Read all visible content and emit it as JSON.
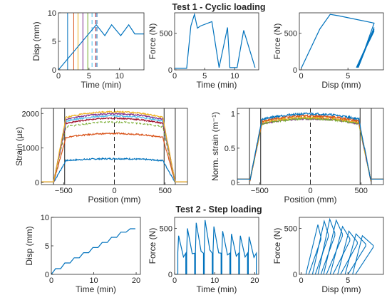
{
  "section_titles": {
    "test1": "Test 1 - Cyclic loading",
    "test2": "Test 2 - Step loading"
  },
  "chart_data": [
    {
      "id": "t1_disp",
      "type": "line",
      "xlabel": "Time (min)",
      "ylabel": "Disp (mm)",
      "xlim": [
        0,
        14
      ],
      "ylim": [
        0,
        10
      ],
      "xticks": [
        0,
        5,
        10
      ],
      "yticks": [
        0,
        5,
        10
      ],
      "series": [
        {
          "color": "#0072BD",
          "x": [
            0,
            6.2,
            7.6,
            8.7,
            10.2,
            11.5,
            12.5,
            14
          ],
          "y": [
            0,
            7.9,
            6.0,
            7.9,
            6.0,
            7.9,
            6.3,
            6.3
          ]
        }
      ],
      "vlines": [
        {
          "x": 1.5,
          "color": "#0072BD",
          "dash": false
        },
        {
          "x": 2.5,
          "color": "#D95319",
          "dash": false
        },
        {
          "x": 3.2,
          "color": "#EDB120",
          "dash": false
        },
        {
          "x": 4.0,
          "color": "#7E2F8E",
          "dash": false
        },
        {
          "x": 4.8,
          "color": "#77AC30",
          "dash": false
        },
        {
          "x": 5.5,
          "color": "#4DBEEE",
          "dash": true
        },
        {
          "x": 6.1,
          "color": "#A2142F",
          "dash": true
        },
        {
          "x": 6.3,
          "color": "#0072BD",
          "dash": true
        }
      ]
    },
    {
      "id": "t1_force_time",
      "type": "line",
      "xlabel": "Time (min)",
      "ylabel": "Force (N)",
      "xlim": [
        0,
        14
      ],
      "ylim": [
        0,
        780
      ],
      "xticks": [
        0,
        5,
        10
      ],
      "yticks": [
        0,
        500
      ],
      "series": [
        {
          "color": "#0072BD",
          "x": [
            0,
            2.0,
            2.7,
            3.3,
            3.8,
            4.3,
            6.2,
            7.4,
            8.8,
            9.2,
            10.4,
            11.5,
            13.4
          ],
          "y": [
            20,
            20,
            600,
            760,
            570,
            600,
            660,
            30,
            580,
            30,
            30,
            540,
            30
          ]
        }
      ]
    },
    {
      "id": "t1_force_disp",
      "type": "line",
      "xlabel": "Disp (mm)",
      "ylabel": "Force (N)",
      "xlim": [
        -0.2,
        8.8
      ],
      "ylim": [
        0,
        780
      ],
      "xticks": [
        0,
        5
      ],
      "yticks": [
        0,
        500
      ],
      "series": [
        {
          "color": "#0072BD",
          "x": [
            0,
            2.0,
            3.1,
            4.0,
            7.8,
            6.1,
            7.8,
            6.0,
            7.8,
            5.9,
            7.8,
            5.9,
            7.8
          ],
          "y": [
            20,
            560,
            760,
            740,
            640,
            30,
            580,
            30,
            560,
            30,
            550,
            30,
            530
          ]
        }
      ]
    },
    {
      "id": "t1_strain",
      "type": "line",
      "xlabel": "Position (mm)",
      "ylabel": "Strain (με)",
      "xlim": [
        -720,
        720
      ],
      "ylim": [
        -60,
        2150
      ],
      "xticks": [
        -500,
        0,
        500
      ],
      "yticks": [
        0,
        1000,
        2000
      ],
      "xticklabels": [
        "−500",
        "0",
        "500"
      ],
      "vlines": [
        {
          "x": -600,
          "color": "#262626",
          "dash": false
        },
        {
          "x": -490,
          "color": "#262626",
          "dash": false
        },
        {
          "x": 0,
          "color": "#262626",
          "dash": true
        },
        {
          "x": 490,
          "color": "#262626",
          "dash": false
        },
        {
          "x": 600,
          "color": "#262626",
          "dash": false
        }
      ],
      "series": [
        {
          "color": "#0072BD",
          "plateau": 690
        },
        {
          "color": "#D95319",
          "plateau": 1420
        },
        {
          "color": "#77AC30",
          "plateau": 1750,
          "dash": true
        },
        {
          "color": "#A2142F",
          "plateau": 1860
        },
        {
          "color": "#4DBEEE",
          "plateau": 1930
        },
        {
          "color": "#7E2F8E",
          "plateau": 1990
        },
        {
          "color": "#EDB120",
          "plateau": 2050
        }
      ]
    },
    {
      "id": "t1_norm_strain",
      "type": "line",
      "xlabel": "Position (mm)",
      "ylabel": "Norm. strain (m⁻¹)",
      "xlim": [
        -720,
        720
      ],
      "ylim": [
        -0.03,
        1.08
      ],
      "xticks": [
        -500,
        0,
        500
      ],
      "yticks": [
        0,
        0.5,
        1
      ],
      "xticklabels": [
        "−500",
        "0",
        "500"
      ],
      "vlines": [
        {
          "x": -600,
          "color": "#262626",
          "dash": false
        },
        {
          "x": -490,
          "color": "#262626",
          "dash": false
        },
        {
          "x": 0,
          "color": "#262626",
          "dash": true
        },
        {
          "x": 490,
          "color": "#262626",
          "dash": false
        },
        {
          "x": 600,
          "color": "#262626",
          "dash": false
        }
      ],
      "series": [
        {
          "color": "#7E2F8E",
          "plateau": 0.93
        },
        {
          "color": "#77AC30",
          "plateau": 0.93
        },
        {
          "color": "#EDB120",
          "plateau": 0.95
        },
        {
          "color": "#D95319",
          "plateau": 0.97
        },
        {
          "color": "#0072BD",
          "plateau": 1.0
        }
      ]
    },
    {
      "id": "t2_disp",
      "type": "line",
      "xlabel": "Time (min)",
      "ylabel": "Disp (mm)",
      "xlim": [
        0,
        21
      ],
      "ylim": [
        0,
        10
      ],
      "xticks": [
        0,
        10,
        20
      ],
      "yticks": [
        0,
        5,
        10
      ],
      "series": [
        {
          "color": "#0072BD",
          "steps": [
            1.0,
            2.0,
            2.9,
            3.8,
            4.7,
            5.6,
            6.5,
            7.4,
            8.0
          ]
        }
      ]
    },
    {
      "id": "t2_force_time",
      "type": "line",
      "xlabel": "Time (min)",
      "ylabel": "Force (N)",
      "xlim": [
        0,
        21
      ],
      "ylim": [
        0,
        620
      ],
      "xticks": [
        0,
        10,
        20
      ],
      "yticks": [
        0,
        500
      ],
      "series": [
        {
          "color": "#0072BD",
          "peaks": [
            420,
            500,
            560,
            590,
            520,
            470,
            440,
            420,
            410
          ]
        }
      ]
    },
    {
      "id": "t2_force_disp",
      "type": "line",
      "xlabel": "Disp (mm)",
      "ylabel": "Force (N)",
      "xlim": [
        -0.2,
        8.8
      ],
      "ylim": [
        0,
        620
      ],
      "xticks": [
        0,
        5
      ],
      "yticks": [
        0,
        500
      ],
      "series": [
        {
          "color": "#0072BD",
          "loops": [
            [
              0.5,
              2.1,
              540
            ],
            [
              1.2,
              2.9,
              580
            ],
            [
              1.8,
              3.6,
              600
            ],
            [
              2.4,
              4.4,
              590
            ],
            [
              3.1,
              5.2,
              520
            ],
            [
              3.9,
              6.0,
              470
            ],
            [
              4.7,
              6.9,
              440
            ],
            [
              5.5,
              7.7,
              420
            ]
          ]
        }
      ]
    }
  ]
}
